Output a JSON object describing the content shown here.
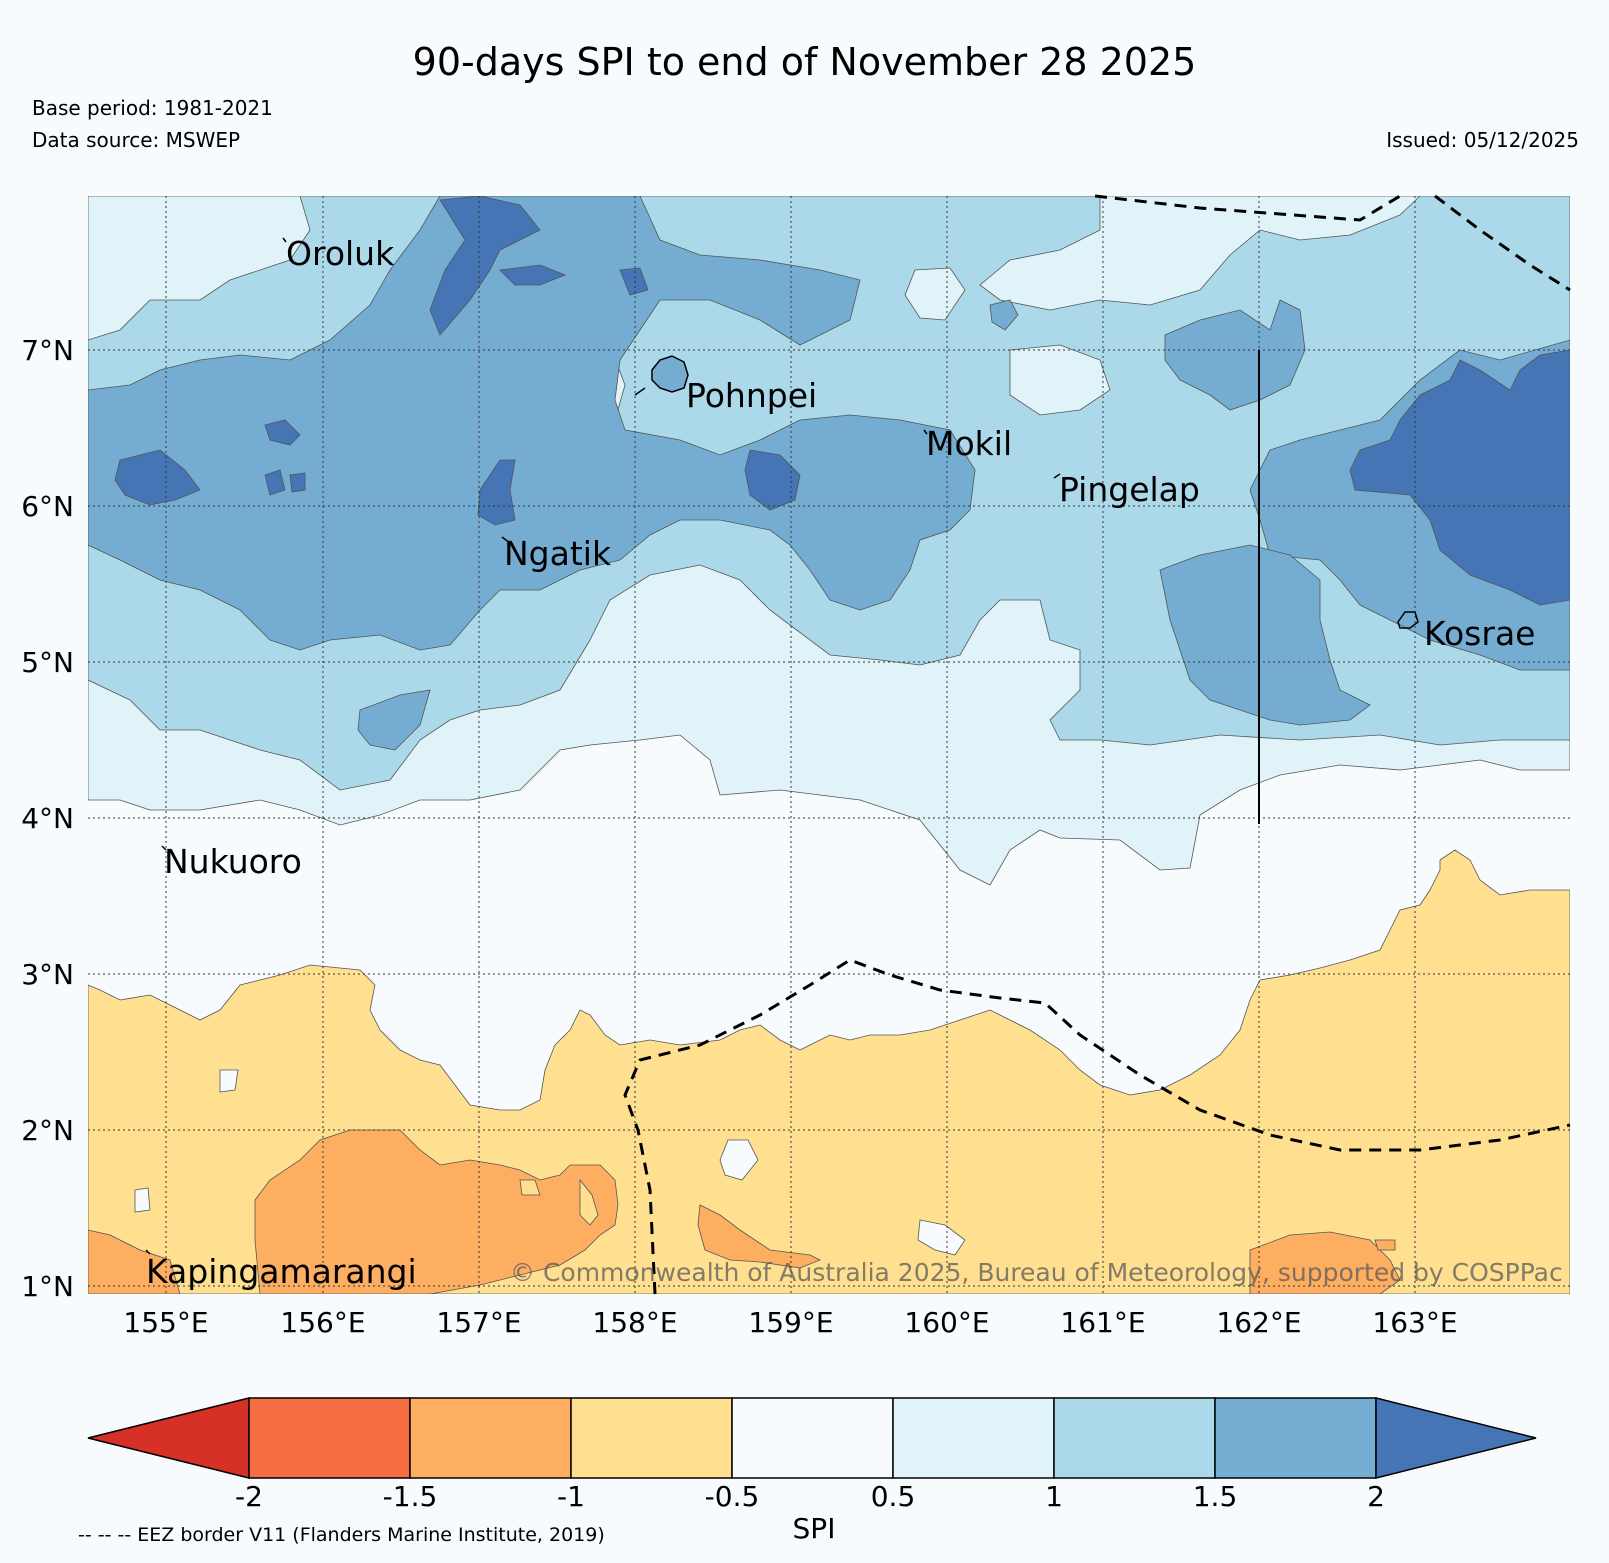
{
  "title": "90-days SPI to end of November 28 2025",
  "base_period": "Base period: 1981-2021",
  "data_source": "Data source: MSWEP",
  "issued": "Issued: 05/12/2025",
  "latitude_labels": [
    "7°N",
    "6°N",
    "5°N",
    "4°N",
    "3°N",
    "2°N",
    "1°N"
  ],
  "longitude_labels": [
    "155°E",
    "156°E",
    "157°E",
    "158°E",
    "159°E",
    "160°E",
    "161°E",
    "162°E",
    "163°E"
  ],
  "islands": {
    "oroluk": "Oroluk",
    "pohnpei": "Pohnpei",
    "mokil": "Mokil",
    "pingelap": "Pingelap",
    "ngatik": "Ngatik",
    "kosrae": "Kosrae",
    "nukuoro": "Nukuoro",
    "kapingamarangi": "Kapingamarangi"
  },
  "copyright": "© Commonwealth of Australia 2025, Bureau of Meteorology, supported by COSPPac",
  "colorbar": {
    "title": "SPI",
    "ticks": [
      "-2",
      "-1.5",
      "-1",
      "-0.5",
      "0.5",
      "1",
      "1.5",
      "2"
    ],
    "colors": [
      "#d73027",
      "#f46d43",
      "#fdae61",
      "#fee090",
      "#f7fbfd",
      "#e0f3f8",
      "#abd9e9",
      "#74add1",
      "#4575b4"
    ]
  },
  "eez_note": "-- -- -- EEZ border V11 (Flanders Marine Institute, 2019)",
  "legend_colors": {
    "dry_moderate": "#fdae61",
    "dry_mild": "#fee090",
    "near_normal": "#f7fbfd",
    "wet_mild": "#e0f3f8",
    "wet_moderate": "#abd9e9",
    "wet_high": "#74add1",
    "wet_very_high": "#4575b4"
  }
}
